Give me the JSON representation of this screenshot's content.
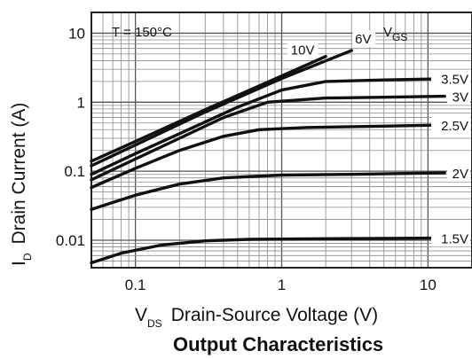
{
  "chart_data": {
    "type": "line",
    "title": "Output Characteristics",
    "xlabel": {
      "symbol": "V",
      "sub": "DS",
      "text": "Drain-Source Voltage (V)"
    },
    "ylabel": {
      "symbol": "I",
      "sub": "D",
      "text": "Drain Current (A)"
    },
    "x_scale": "log",
    "y_scale": "log",
    "xlim": [
      0.05,
      20
    ],
    "ylim": [
      0.004,
      20
    ],
    "grid": true,
    "x_ticks": [
      {
        "value": 0.1,
        "label": "0.1"
      },
      {
        "value": 1,
        "label": "1"
      },
      {
        "value": 10,
        "label": "10"
      }
    ],
    "y_ticks": [
      {
        "value": 0.01,
        "label": "0.01"
      },
      {
        "value": 0.1,
        "label": "0.1"
      },
      {
        "value": 1,
        "label": "1"
      },
      {
        "value": 10,
        "label": "10"
      }
    ],
    "annotations": {
      "temperature": "T = 150°C",
      "vgs_symbol": "V",
      "vgs_sub": "GS"
    },
    "series": [
      {
        "name": "10V",
        "x": [
          0.05,
          0.1,
          0.3,
          1,
          2
        ],
        "y": [
          0.14,
          0.27,
          0.78,
          2.4,
          4.6
        ]
      },
      {
        "name": "6V",
        "x": [
          0.05,
          0.1,
          0.3,
          1,
          3
        ],
        "y": [
          0.12,
          0.24,
          0.72,
          2.2,
          5.6
        ]
      },
      {
        "name": "3.5V",
        "x": [
          0.05,
          0.1,
          0.2,
          0.5,
          1,
          2,
          5,
          15
        ],
        "y": [
          0.09,
          0.18,
          0.35,
          0.85,
          1.5,
          2.0,
          2.1,
          2.2
        ]
      },
      {
        "name": "3V",
        "x": [
          0.05,
          0.1,
          0.2,
          0.4,
          0.8,
          2,
          5,
          13
        ],
        "y": [
          0.075,
          0.15,
          0.3,
          0.6,
          1.0,
          1.15,
          1.18,
          1.22
        ]
      },
      {
        "name": "2.5V",
        "x": [
          0.05,
          0.1,
          0.2,
          0.4,
          0.7,
          1.5,
          5,
          15
        ],
        "y": [
          0.058,
          0.11,
          0.2,
          0.32,
          0.4,
          0.43,
          0.45,
          0.47
        ]
      },
      {
        "name": "2V",
        "x": [
          0.05,
          0.1,
          0.2,
          0.4,
          1,
          3,
          13
        ],
        "y": [
          0.028,
          0.045,
          0.065,
          0.08,
          0.088,
          0.09,
          0.095
        ]
      },
      {
        "name": "1.5V",
        "x": [
          0.05,
          0.08,
          0.15,
          0.3,
          0.6,
          1.5,
          5,
          15
        ],
        "y": [
          0.0047,
          0.0065,
          0.0085,
          0.0098,
          0.0103,
          0.0105,
          0.0106,
          0.0108
        ]
      }
    ]
  }
}
